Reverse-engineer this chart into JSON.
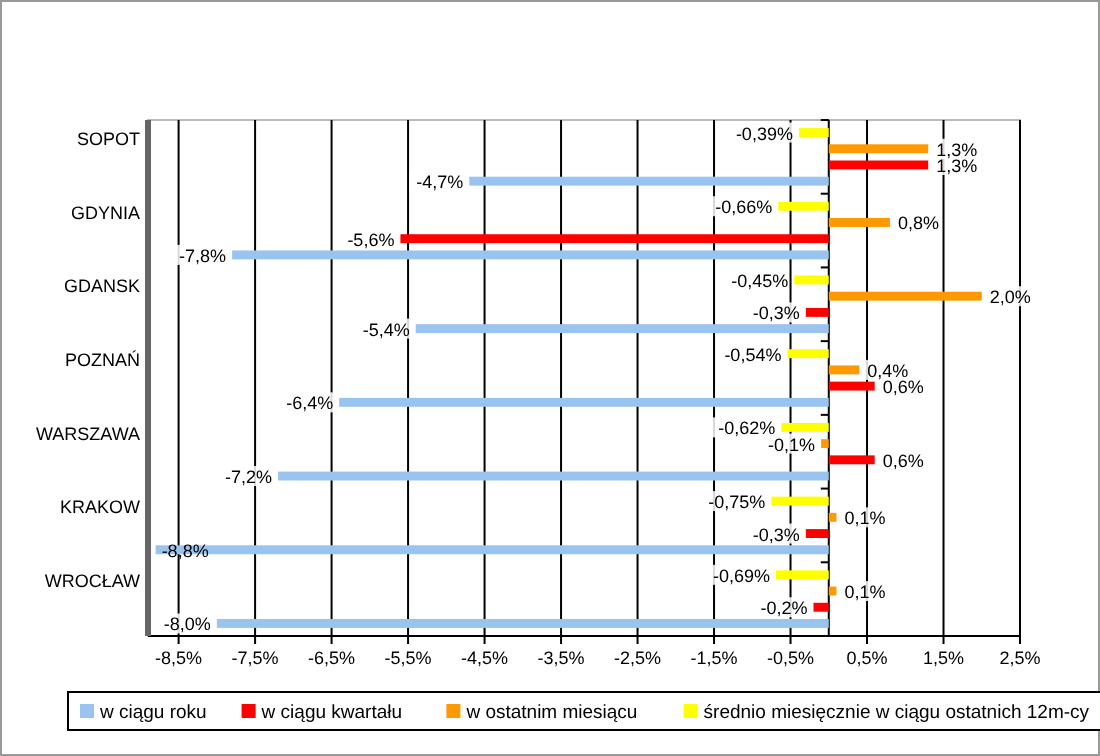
{
  "chart_data": {
    "type": "bar",
    "orientation": "horizontal",
    "categories": [
      "SOPOT",
      "GDYNIA",
      "GDANSK",
      "POZNAŃ",
      "WARSZAWA",
      "KRAKOW",
      "WROCŁAW"
    ],
    "series": [
      {
        "name": "w ciągu roku",
        "color": "#99c4f0",
        "values": [
          -4.7,
          -7.8,
          -5.4,
          -6.4,
          -7.2,
          -8.8,
          -8.0
        ],
        "value_labels": [
          "-4,7%",
          "-7,8%",
          "-5,4%",
          "-6,4%",
          "-7,2%",
          "-8,8%",
          "-8,0%"
        ]
      },
      {
        "name": "w ciągu kwartału",
        "color": "#ff0000",
        "values": [
          1.3,
          -5.6,
          -0.3,
          0.6,
          0.6,
          -0.3,
          -0.2
        ],
        "value_labels": [
          "1,3%",
          "-5,6%",
          "-0,3%",
          "0,6%",
          "0,6%",
          "-0,3%",
          "-0,2%"
        ]
      },
      {
        "name": "w ostatnim miesiącu",
        "color": "#ff9900",
        "values": [
          1.3,
          0.8,
          2.0,
          0.4,
          -0.1,
          0.1,
          0.1
        ],
        "value_labels": [
          "1,3%",
          "0,8%",
          "2,0%",
          "0,4%",
          "-0,1%",
          "0,1%",
          "0,1%"
        ]
      },
      {
        "name": "średnio miesięcznie w ciągu ostatnich 12m-cy",
        "color": "#ffff00",
        "values": [
          -0.39,
          -0.66,
          -0.45,
          -0.54,
          -0.62,
          -0.75,
          -0.69
        ],
        "value_labels": [
          "-0,39%",
          "-0,66%",
          "-0,45%",
          "-0,54%",
          "-0,62%",
          "-0,75%",
          "-0,69%"
        ]
      }
    ],
    "xlim": [
      -8.9,
      2.5
    ],
    "xticks": [
      {
        "value": -8.5,
        "label": "-8,5%"
      },
      {
        "value": -7.5,
        "label": "-7,5%"
      },
      {
        "value": -6.5,
        "label": "-6,5%"
      },
      {
        "value": -5.5,
        "label": "-5,5%"
      },
      {
        "value": -4.5,
        "label": "-4,5%"
      },
      {
        "value": -3.5,
        "label": "-3,5%"
      },
      {
        "value": -2.5,
        "label": "-2,5%"
      },
      {
        "value": -1.5,
        "label": "-1,5%"
      },
      {
        "value": -0.5,
        "label": "-0,5%"
      },
      {
        "value": 0.5,
        "label": "0,5%"
      },
      {
        "value": 1.5,
        "label": "1,5%"
      },
      {
        "value": 2.5,
        "label": "2,5%"
      }
    ],
    "grid": "x",
    "legend": "bottom"
  }
}
